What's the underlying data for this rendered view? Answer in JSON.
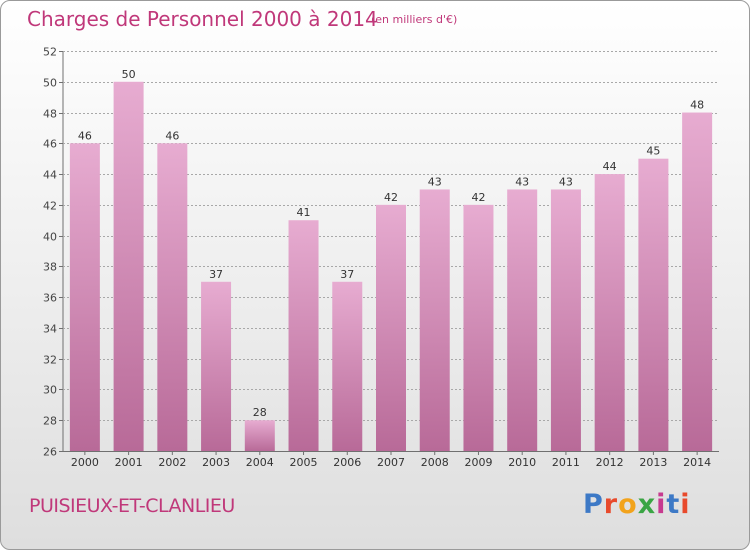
{
  "header": {
    "title": "Charges de Personnel 2000 à 2014",
    "subtitle": "(en milliers d'€)"
  },
  "footer": {
    "city": "PUISIEUX-ET-CLANLIEU",
    "logo_letters": [
      "P",
      "r",
      "o",
      "x",
      "i",
      "t",
      "i"
    ],
    "logo_colors": [
      "#3d79c6",
      "#e84a2c",
      "#f2a31c",
      "#3aa544",
      "#c73a8f",
      "#3d79c6",
      "#e84a2c"
    ]
  },
  "colors": {
    "bar_top": "#e7acd1",
    "bar_bottom": "#b86a98",
    "grid": "#a8a8a8",
    "axis": "#707070",
    "accent": "#c0387a"
  },
  "chart_data": {
    "type": "bar",
    "title": "Charges de Personnel 2000 à 2014",
    "subtitle": "(en milliers d'€)",
    "categories": [
      "2000",
      "2001",
      "2002",
      "2003",
      "2004",
      "2005",
      "2006",
      "2007",
      "2008",
      "2009",
      "2010",
      "2011",
      "2012",
      "2013",
      "2014"
    ],
    "values": [
      46,
      50,
      46,
      37,
      28,
      41,
      37,
      42,
      43,
      42,
      43,
      43,
      44,
      45,
      48
    ],
    "ylim": [
      26,
      52
    ],
    "yticks": [
      26,
      28,
      30,
      32,
      34,
      36,
      38,
      40,
      42,
      44,
      46,
      48,
      50,
      52
    ],
    "grid": true,
    "data_labels": true
  }
}
